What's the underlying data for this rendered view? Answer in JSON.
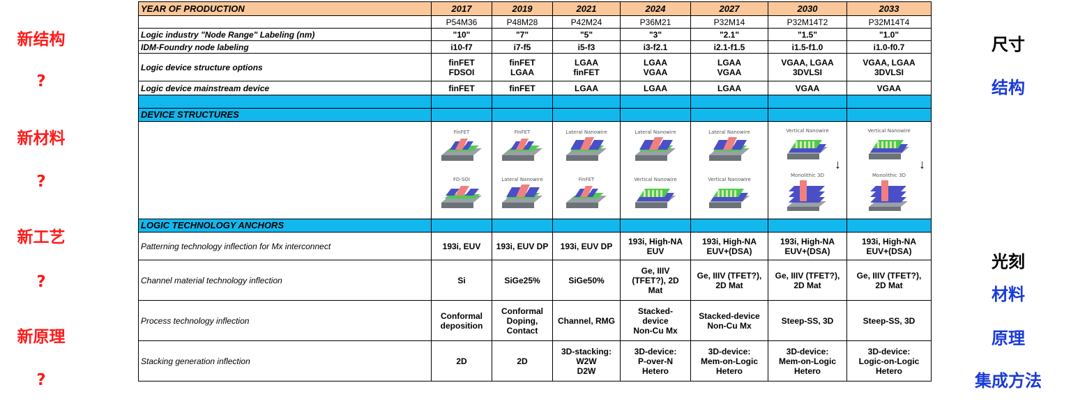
{
  "left_labels": [
    "新结构",
    "?",
    "新材料",
    "?",
    "新工艺",
    "?",
    "新原理",
    "?"
  ],
  "right_labels": [
    "尺寸",
    "结构",
    "光刻",
    "材料",
    "原理",
    "集成方法"
  ],
  "colors": {
    "left_label": "#ff1a1a",
    "right_black": "#000000",
    "right_blue": "#1a3ad9",
    "header_bg": "#f9c79a",
    "section_bg": "#12b7ee"
  },
  "table": {
    "header": {
      "label": "YEAR OF PRODUCTION",
      "years": [
        "2017",
        "2019",
        "2021",
        "2024",
        "2027",
        "2030",
        "2033"
      ]
    },
    "codes": [
      "P54M36",
      "P48M28",
      "P42M24",
      "P36M21",
      "P32M14",
      "P32M14T2",
      "P32M14T4"
    ],
    "rows": [
      {
        "label": "Logic industry \"Node Range\" Labeling (nm)",
        "cells": [
          "\"10\"",
          "\"7\"",
          "\"5\"",
          "\"3\"",
          "\"2.1\"",
          "\"1.5\"",
          "\"1.0\""
        ]
      },
      {
        "label": "IDM-Foundry node labeling",
        "cells": [
          "i10-f7",
          "i7-f5",
          "i5-f3",
          "i3-f2.1",
          "i2.1-f1.5",
          "i1.5-f1.0",
          "i1.0-f0.7"
        ]
      },
      {
        "label": "Logic device structure options",
        "cells": [
          [
            "finFET",
            "FDSOI"
          ],
          [
            "finFET",
            "LGAA"
          ],
          [
            "LGAA",
            "finFET"
          ],
          [
            "LGAA",
            "VGAA"
          ],
          [
            "LGAA",
            "VGAA"
          ],
          [
            "VGAA, LGAA",
            "3DVLSI"
          ],
          [
            "VGAA, LGAA",
            "3DVLSI"
          ]
        ]
      },
      {
        "label": "Logic device mainstream device",
        "cells": [
          "finFET",
          "finFET",
          "LGAA",
          "LGAA",
          "LGAA",
          "VGAA",
          "VGAA"
        ]
      }
    ],
    "device_structures": {
      "label": "DEVICE STRUCTURES",
      "captions": [
        [
          "FinFET",
          "FD-SOI"
        ],
        [
          "FinFET",
          "Lateral Nanowire"
        ],
        [
          "Lateral Nanowire",
          "FinFET"
        ],
        [
          "Lateral Nanowire",
          "Vertical Nanowire"
        ],
        [
          "Lateral Nanowire",
          "Vertical Nanowire"
        ],
        [
          "Vertical Nanowire",
          "Monolithic 3D"
        ],
        [
          "Vertical Nanowire",
          "Monolithic 3D"
        ]
      ],
      "icon_names": [
        "finfet-icon",
        "fdsoi-icon",
        "lateral-nanowire-icon",
        "vertical-nanowire-icon",
        "monolithic-3d-icon"
      ]
    },
    "anchors": {
      "label": "LOGIC TECHNOLOGY ANCHORS",
      "rows": [
        {
          "label": "Patterning  technology inflection for Mx interconnect",
          "cells": [
            [
              "193i, EUV"
            ],
            [
              "193i, EUV DP"
            ],
            [
              "193i, EUV DP"
            ],
            [
              "193i, High-NA",
              "EUV"
            ],
            [
              "193i, High-NA",
              "EUV+(DSA)"
            ],
            [
              "193i, High-NA",
              "EUV+(DSA)"
            ],
            [
              "193i, High-NA",
              "EUV+(DSA)"
            ]
          ]
        },
        {
          "label": "Channel material technology inflection",
          "cells": [
            [
              "Si"
            ],
            [
              "SiGe25%"
            ],
            [
              "SiGe50%"
            ],
            [
              "Ge, IIIV",
              "(TFET?), 2D",
              "Mat"
            ],
            [
              "Ge, IIIV (TFET?),",
              "2D Mat"
            ],
            [
              "Ge, IIIV (TFET?),",
              "2D Mat"
            ],
            [
              "Ge, IIIV (TFET?),",
              "2D Mat"
            ]
          ]
        },
        {
          "label": "Process technology inflection",
          "cells": [
            [
              "Conformal",
              "deposition"
            ],
            [
              "Conformal",
              "Doping,",
              "Contact"
            ],
            [
              "Channel, RMG"
            ],
            [
              "Stacked-",
              "device",
              "Non-Cu Mx"
            ],
            [
              "Stacked-device",
              "Non-Cu Mx"
            ],
            [
              "Steep-SS, 3D"
            ],
            [
              "Steep-SS, 3D"
            ]
          ]
        },
        {
          "label": "Stacking generation inflection",
          "cells": [
            [
              "2D"
            ],
            [
              "2D"
            ],
            [
              "3D-stacking:",
              "W2W",
              "D2W"
            ],
            [
              "3D-device:",
              "P-over-N",
              "Hetero"
            ],
            [
              "3D-device:",
              "Mem-on-Logic",
              "Hetero"
            ],
            [
              "3D-device:",
              "Mem-on-Logic",
              "Hetero"
            ],
            [
              "3D-device:",
              "Logic-on-Logic",
              "Hetero"
            ]
          ]
        }
      ]
    }
  }
}
